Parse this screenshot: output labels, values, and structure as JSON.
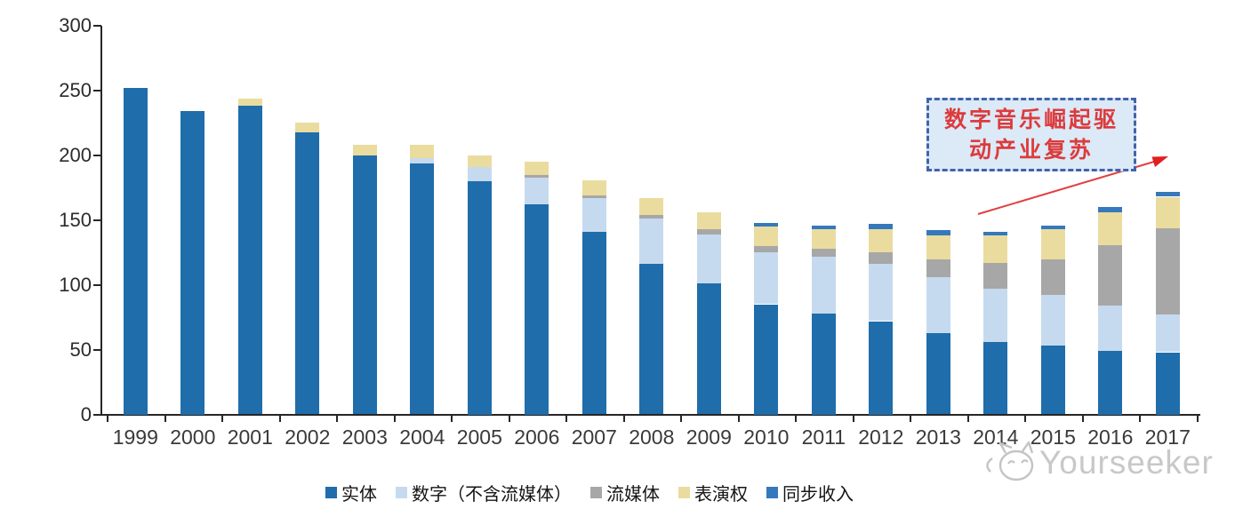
{
  "annotation": {
    "line1": "数字音乐崛起驱",
    "line2": "动产业复苏",
    "text_color": "#DC3B3C",
    "border_color": "#4264A8",
    "fill_color": "#DCE9F7",
    "arrow_color": "#E14040"
  },
  "watermark": {
    "text": "Yourseeker",
    "icon": "cat-logo-icon",
    "color": "#c8c8c8"
  },
  "chart_data": {
    "type": "bar",
    "stacked": true,
    "title": "",
    "xlabel": "",
    "ylabel": "",
    "ylim": [
      0,
      300
    ],
    "yticks": [
      0,
      50,
      100,
      150,
      200,
      250,
      300
    ],
    "grid": false,
    "legend_position": "bottom",
    "categories": [
      "1999",
      "2000",
      "2001",
      "2002",
      "2003",
      "2004",
      "2005",
      "2006",
      "2007",
      "2008",
      "2009",
      "2010",
      "2011",
      "2012",
      "2013",
      "2014",
      "2015",
      "2016",
      "2017"
    ],
    "series": [
      {
        "key": "physical",
        "name": "实体",
        "color": "#1F6DAB",
        "values": [
          252,
          234,
          238,
          218,
          200,
          194,
          180,
          162,
          141,
          116,
          101,
          85,
          78,
          72,
          63,
          56,
          53,
          49,
          48
        ]
      },
      {
        "key": "digital-excl-streaming",
        "name": "数字（不含流媒体）",
        "color": "#C6DAEF",
        "values": [
          0,
          0,
          0,
          0,
          0,
          4,
          11,
          21,
          26,
          35,
          38,
          40,
          44,
          44,
          43,
          41,
          39,
          35,
          29
        ]
      },
      {
        "key": "streaming",
        "name": "流媒体",
        "color": "#A7A7A7",
        "values": [
          0,
          0,
          0,
          0,
          0,
          0,
          0,
          2,
          2,
          3,
          4,
          5,
          6,
          9,
          14,
          20,
          28,
          47,
          67
        ]
      },
      {
        "key": "performance-rights",
        "name": "表演权",
        "color": "#EADC9E",
        "values": [
          0,
          0,
          6,
          7,
          8,
          10,
          9,
          10,
          12,
          13,
          13,
          15,
          15,
          18,
          18,
          21,
          23,
          25,
          24
        ]
      },
      {
        "key": "sync-revenue",
        "name": "同步收入",
        "color": "#3579BC",
        "values": [
          0,
          0,
          0,
          0,
          0,
          0,
          0,
          0,
          0,
          0,
          0,
          3,
          3,
          4,
          4,
          3,
          3,
          4,
          4
        ]
      }
    ]
  }
}
